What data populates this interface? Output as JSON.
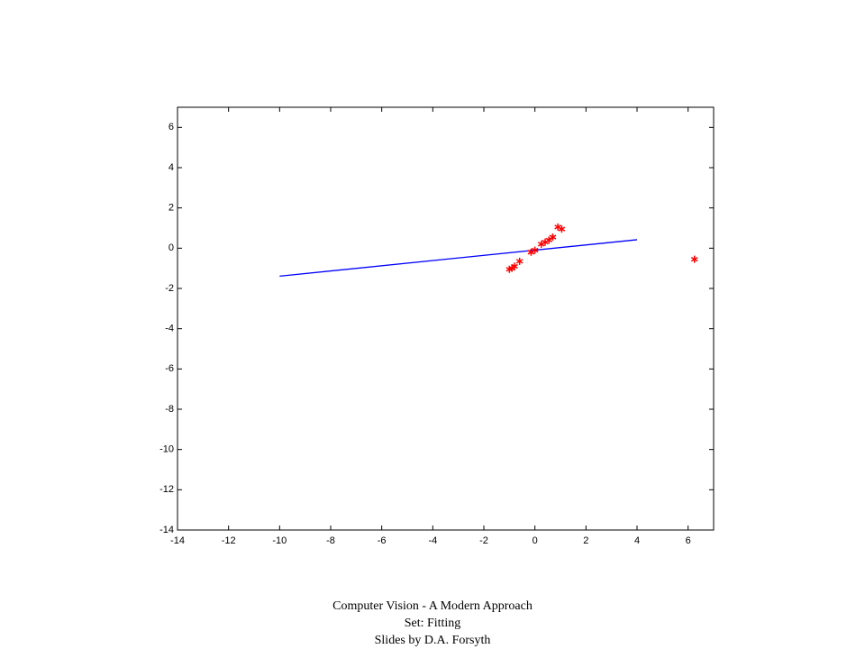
{
  "chart_data": {
    "type": "scatter",
    "xlim": [
      -14,
      7
    ],
    "ylim": [
      -14,
      7
    ],
    "xticks": [
      -14,
      -12,
      -10,
      -8,
      -6,
      -4,
      -2,
      0,
      2,
      4,
      6
    ],
    "yticks": [
      -14,
      -12,
      -10,
      -8,
      -6,
      -4,
      -2,
      0,
      2,
      4,
      6
    ],
    "series": [
      {
        "type": "line",
        "color": "#0000ff",
        "x": [
          -10,
          4
        ],
        "values": [
          -1.39,
          0.42
        ]
      },
      {
        "type": "scatter",
        "color": "#ff0000",
        "x": [
          -1.0,
          -0.9,
          -0.8,
          -0.6,
          -0.15,
          0.0,
          0.25,
          0.4,
          0.55,
          0.7,
          0.9,
          1.05,
          6.25
        ],
        "values": [
          -1.05,
          -1.0,
          -0.9,
          -0.65,
          -0.2,
          -0.1,
          0.2,
          0.3,
          0.4,
          0.55,
          1.05,
          0.95,
          -0.55
        ]
      }
    ]
  },
  "footer": {
    "lines": [
      "Computer Vision - A Modern Approach",
      "Set:  Fitting",
      "Slides by D.A. Forsyth"
    ]
  }
}
